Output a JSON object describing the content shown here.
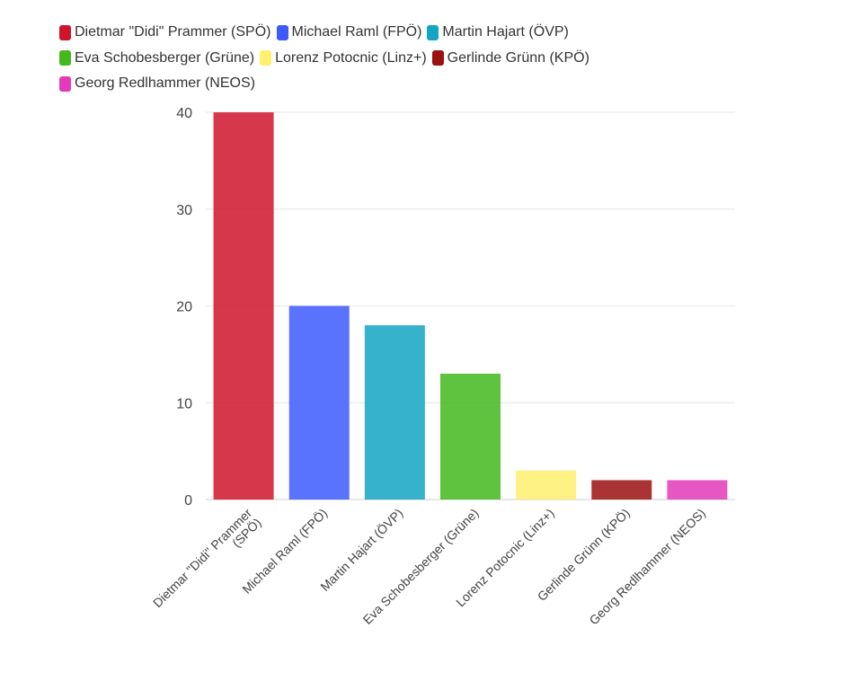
{
  "chart_data": {
    "type": "bar",
    "categories": [
      "Dietmar \"Didi\" Prammer (SPÖ)",
      "Michael Raml (FPÖ)",
      "Martin Hajart (ÖVP)",
      "Eva Schobesberger (Grüne)",
      "Lorenz Potocnic (Linz+)",
      "Gerlinde Grünn (KPÖ)",
      "Georg Redlhammer (NEOS)"
    ],
    "category_label_lines": [
      [
        "Dietmar \"Didi\" Prammer",
        "(SPÖ)"
      ],
      [
        "Michael Raml (FPÖ)"
      ],
      [
        "Martin Hajart (ÖVP)"
      ],
      [
        "Eva Schobesberger (Grüne)"
      ],
      [
        "Lorenz Potocnic (Linz+)"
      ],
      [
        "Gerlinde Grünn (KPÖ)"
      ],
      [
        "Georg Redlhammer (NEOS)"
      ]
    ],
    "values": [
      40,
      20,
      18,
      13,
      3,
      2,
      2
    ],
    "colors": [
      "#d0142c",
      "#3d5afe",
      "#14a5c4",
      "#43b91e",
      "#fff06e",
      "#9b1010",
      "#e33ab9"
    ],
    "ylim": [
      0,
      40
    ],
    "yticks": [
      "0",
      "10",
      "20",
      "30",
      "40"
    ],
    "title": "",
    "xlabel": "",
    "ylabel": "",
    "grid": true,
    "legend_position": "top-left"
  }
}
